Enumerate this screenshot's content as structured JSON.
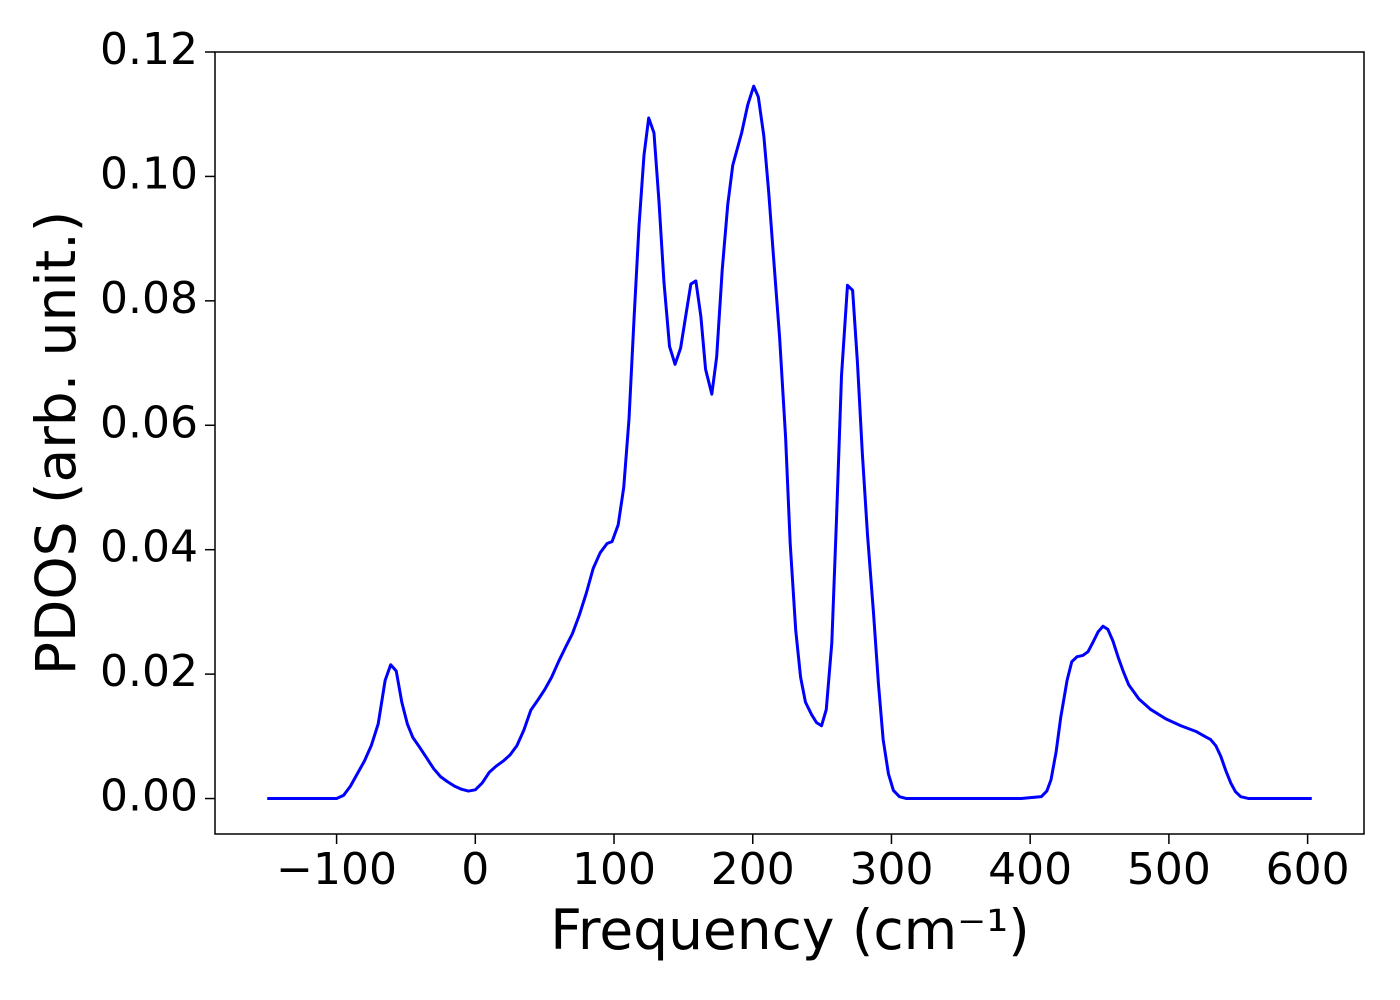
{
  "chart_data": {
    "type": "line",
    "xlabel": "Frequency (cm⁻¹)",
    "ylabel": "PDOS (arb. unit.)",
    "xlim": [
      -187.65,
      640.65
    ],
    "ylim": [
      -0.0057,
      0.12
    ],
    "xticks": [
      {
        "value": -100,
        "label": "−100"
      },
      0,
      100,
      200,
      300,
      400,
      500,
      600
    ],
    "yticks": [
      {
        "value": 0,
        "label": "0.00"
      },
      {
        "value": 0.02,
        "label": "0.02"
      },
      {
        "value": 0.04,
        "label": "0.04"
      },
      {
        "value": 0.06,
        "label": "0.06"
      },
      {
        "value": 0.08,
        "label": "0.08"
      },
      {
        "value": 0.1,
        "label": "0.10"
      },
      {
        "value": 0.12,
        "label": "0.12"
      }
    ],
    "grid": false,
    "x": [
      -150,
      -100,
      -95,
      -90,
      -85,
      -80,
      -75,
      -70,
      -65,
      -61,
      -57,
      -53,
      -49,
      -45,
      -40,
      -35,
      -30,
      -25,
      -20,
      -15,
      -10,
      -5,
      0,
      5,
      10,
      15,
      20,
      25,
      30,
      35,
      40,
      45,
      50,
      55,
      60,
      65,
      70,
      75,
      80,
      85,
      90,
      95,
      98.6,
      103,
      107,
      110.8,
      114.4,
      118,
      121.6,
      125,
      128.8,
      132.4,
      136,
      140,
      144,
      148,
      152,
      155.4,
      159,
      162.6,
      166,
      170.5,
      174,
      178,
      182,
      185.6,
      192,
      196.4,
      200.7,
      204,
      208,
      211.5,
      215,
      219.4,
      223.7,
      227,
      231,
      234.5,
      238,
      242.4,
      246,
      249.6,
      253,
      257,
      260.4,
      264,
      268.3,
      272,
      275.5,
      279,
      282.7,
      287,
      290.6,
      294,
      297.8,
      301.4,
      305.8,
      310.8,
      393.5,
      408,
      412,
      415,
      418.7,
      422,
      426.6,
      430,
      433.8,
      438,
      441.7,
      445,
      449,
      452.5,
      456,
      459.7,
      463.3,
      467,
      471,
      478.4,
      487,
      497.8,
      508.6,
      519.4,
      526.6,
      530,
      533.8,
      537.4,
      541,
      544.6,
      548,
      551.8,
      557.6,
      603
    ],
    "series": [
      {
        "name": "PDOS",
        "color": "#0000ff",
        "values": [
          0,
          0,
          0.0005,
          0.002,
          0.004,
          0.006,
          0.0085,
          0.012,
          0.019,
          0.0215,
          0.0205,
          0.0155,
          0.012,
          0.0098,
          0.0082,
          0.0065,
          0.0048,
          0.0035,
          0.0027,
          0.002,
          0.0015,
          0.0012,
          0.0014,
          0.0025,
          0.0042,
          0.0052,
          0.006,
          0.007,
          0.0085,
          0.011,
          0.0142,
          0.0158,
          0.0175,
          0.0195,
          0.022,
          0.0243,
          0.0265,
          0.0295,
          0.033,
          0.037,
          0.0395,
          0.041,
          0.0413,
          0.044,
          0.05,
          0.061,
          0.077,
          0.092,
          0.1034,
          0.1094,
          0.107,
          0.096,
          0.083,
          0.0727,
          0.0698,
          0.0724,
          0.078,
          0.0827,
          0.0832,
          0.0775,
          0.069,
          0.065,
          0.071,
          0.085,
          0.0955,
          0.1018,
          0.107,
          0.1115,
          0.1145,
          0.1128,
          0.1065,
          0.0975,
          0.087,
          0.074,
          0.058,
          0.041,
          0.027,
          0.0195,
          0.0155,
          0.0135,
          0.0122,
          0.0117,
          0.0143,
          0.025,
          0.045,
          0.068,
          0.0825,
          0.0817,
          0.07,
          0.0555,
          0.0425,
          0.03,
          0.0185,
          0.0095,
          0.004,
          0.0013,
          0.0003,
          0,
          0,
          0.0003,
          0.0012,
          0.003,
          0.0075,
          0.013,
          0.019,
          0.022,
          0.0228,
          0.023,
          0.0236,
          0.025,
          0.0268,
          0.0277,
          0.0272,
          0.0253,
          0.0228,
          0.0205,
          0.0183,
          0.016,
          0.0143,
          0.0128,
          0.0117,
          0.0108,
          0.0099,
          0.0095,
          0.0085,
          0.0068,
          0.0045,
          0.0025,
          0.0011,
          0.0003,
          0,
          0
        ]
      }
    ]
  }
}
